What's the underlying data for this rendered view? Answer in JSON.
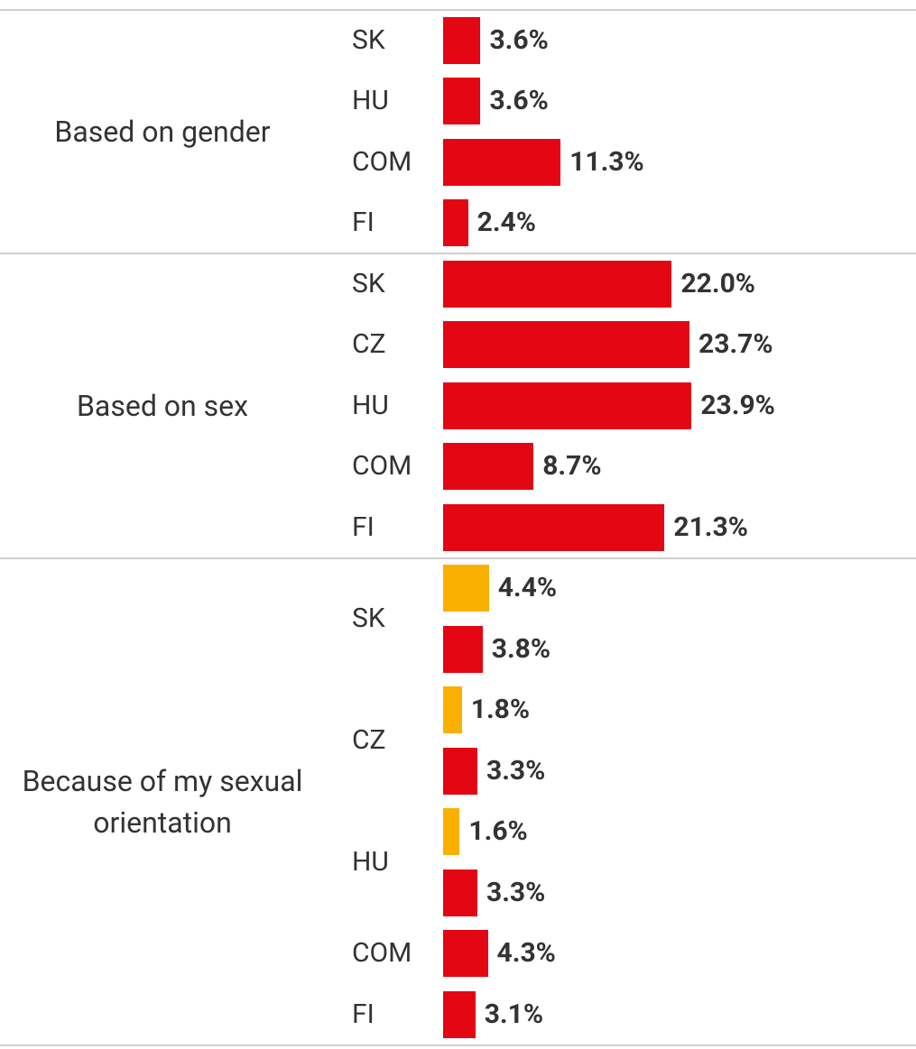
{
  "chart_data": {
    "type": "bar",
    "xlim": [
      0,
      25
    ],
    "groups": [
      {
        "label": "Based on gender",
        "categories": [
          "SK",
          "HU",
          "COM",
          "FI"
        ],
        "series": [
          {
            "color": "#e30613",
            "values": [
              3.6,
              3.6,
              11.3,
              2.4
            ],
            "value_labels": [
              "3.6%",
              "3.6%",
              "11.3%",
              "2.4%"
            ]
          }
        ]
      },
      {
        "label": "Based on sex",
        "categories": [
          "SK",
          "CZ",
          "HU",
          "COM",
          "FI"
        ],
        "series": [
          {
            "color": "#e30613",
            "values": [
              22.0,
              23.7,
              23.9,
              8.7,
              21.3
            ],
            "value_labels": [
              "22.0%",
              "23.7%",
              "23.9%",
              "8.7%",
              "21.3%"
            ]
          }
        ]
      },
      {
        "label": "Because of my sexual orientation",
        "categories": [
          "SK",
          "CZ",
          "HU",
          "COM",
          "FI"
        ],
        "series": [
          {
            "color": "#f9b000",
            "values": [
              4.4,
              1.8,
              1.6,
              null,
              null
            ],
            "value_labels": [
              "4.4%",
              "1.8%",
              "1.6%",
              null,
              null
            ]
          },
          {
            "color": "#e30613",
            "values": [
              3.8,
              3.3,
              3.3,
              4.3,
              3.1
            ],
            "value_labels": [
              "3.8%",
              "3.3%",
              "3.3%",
              "4.3%",
              "3.1%"
            ]
          }
        ]
      }
    ]
  }
}
